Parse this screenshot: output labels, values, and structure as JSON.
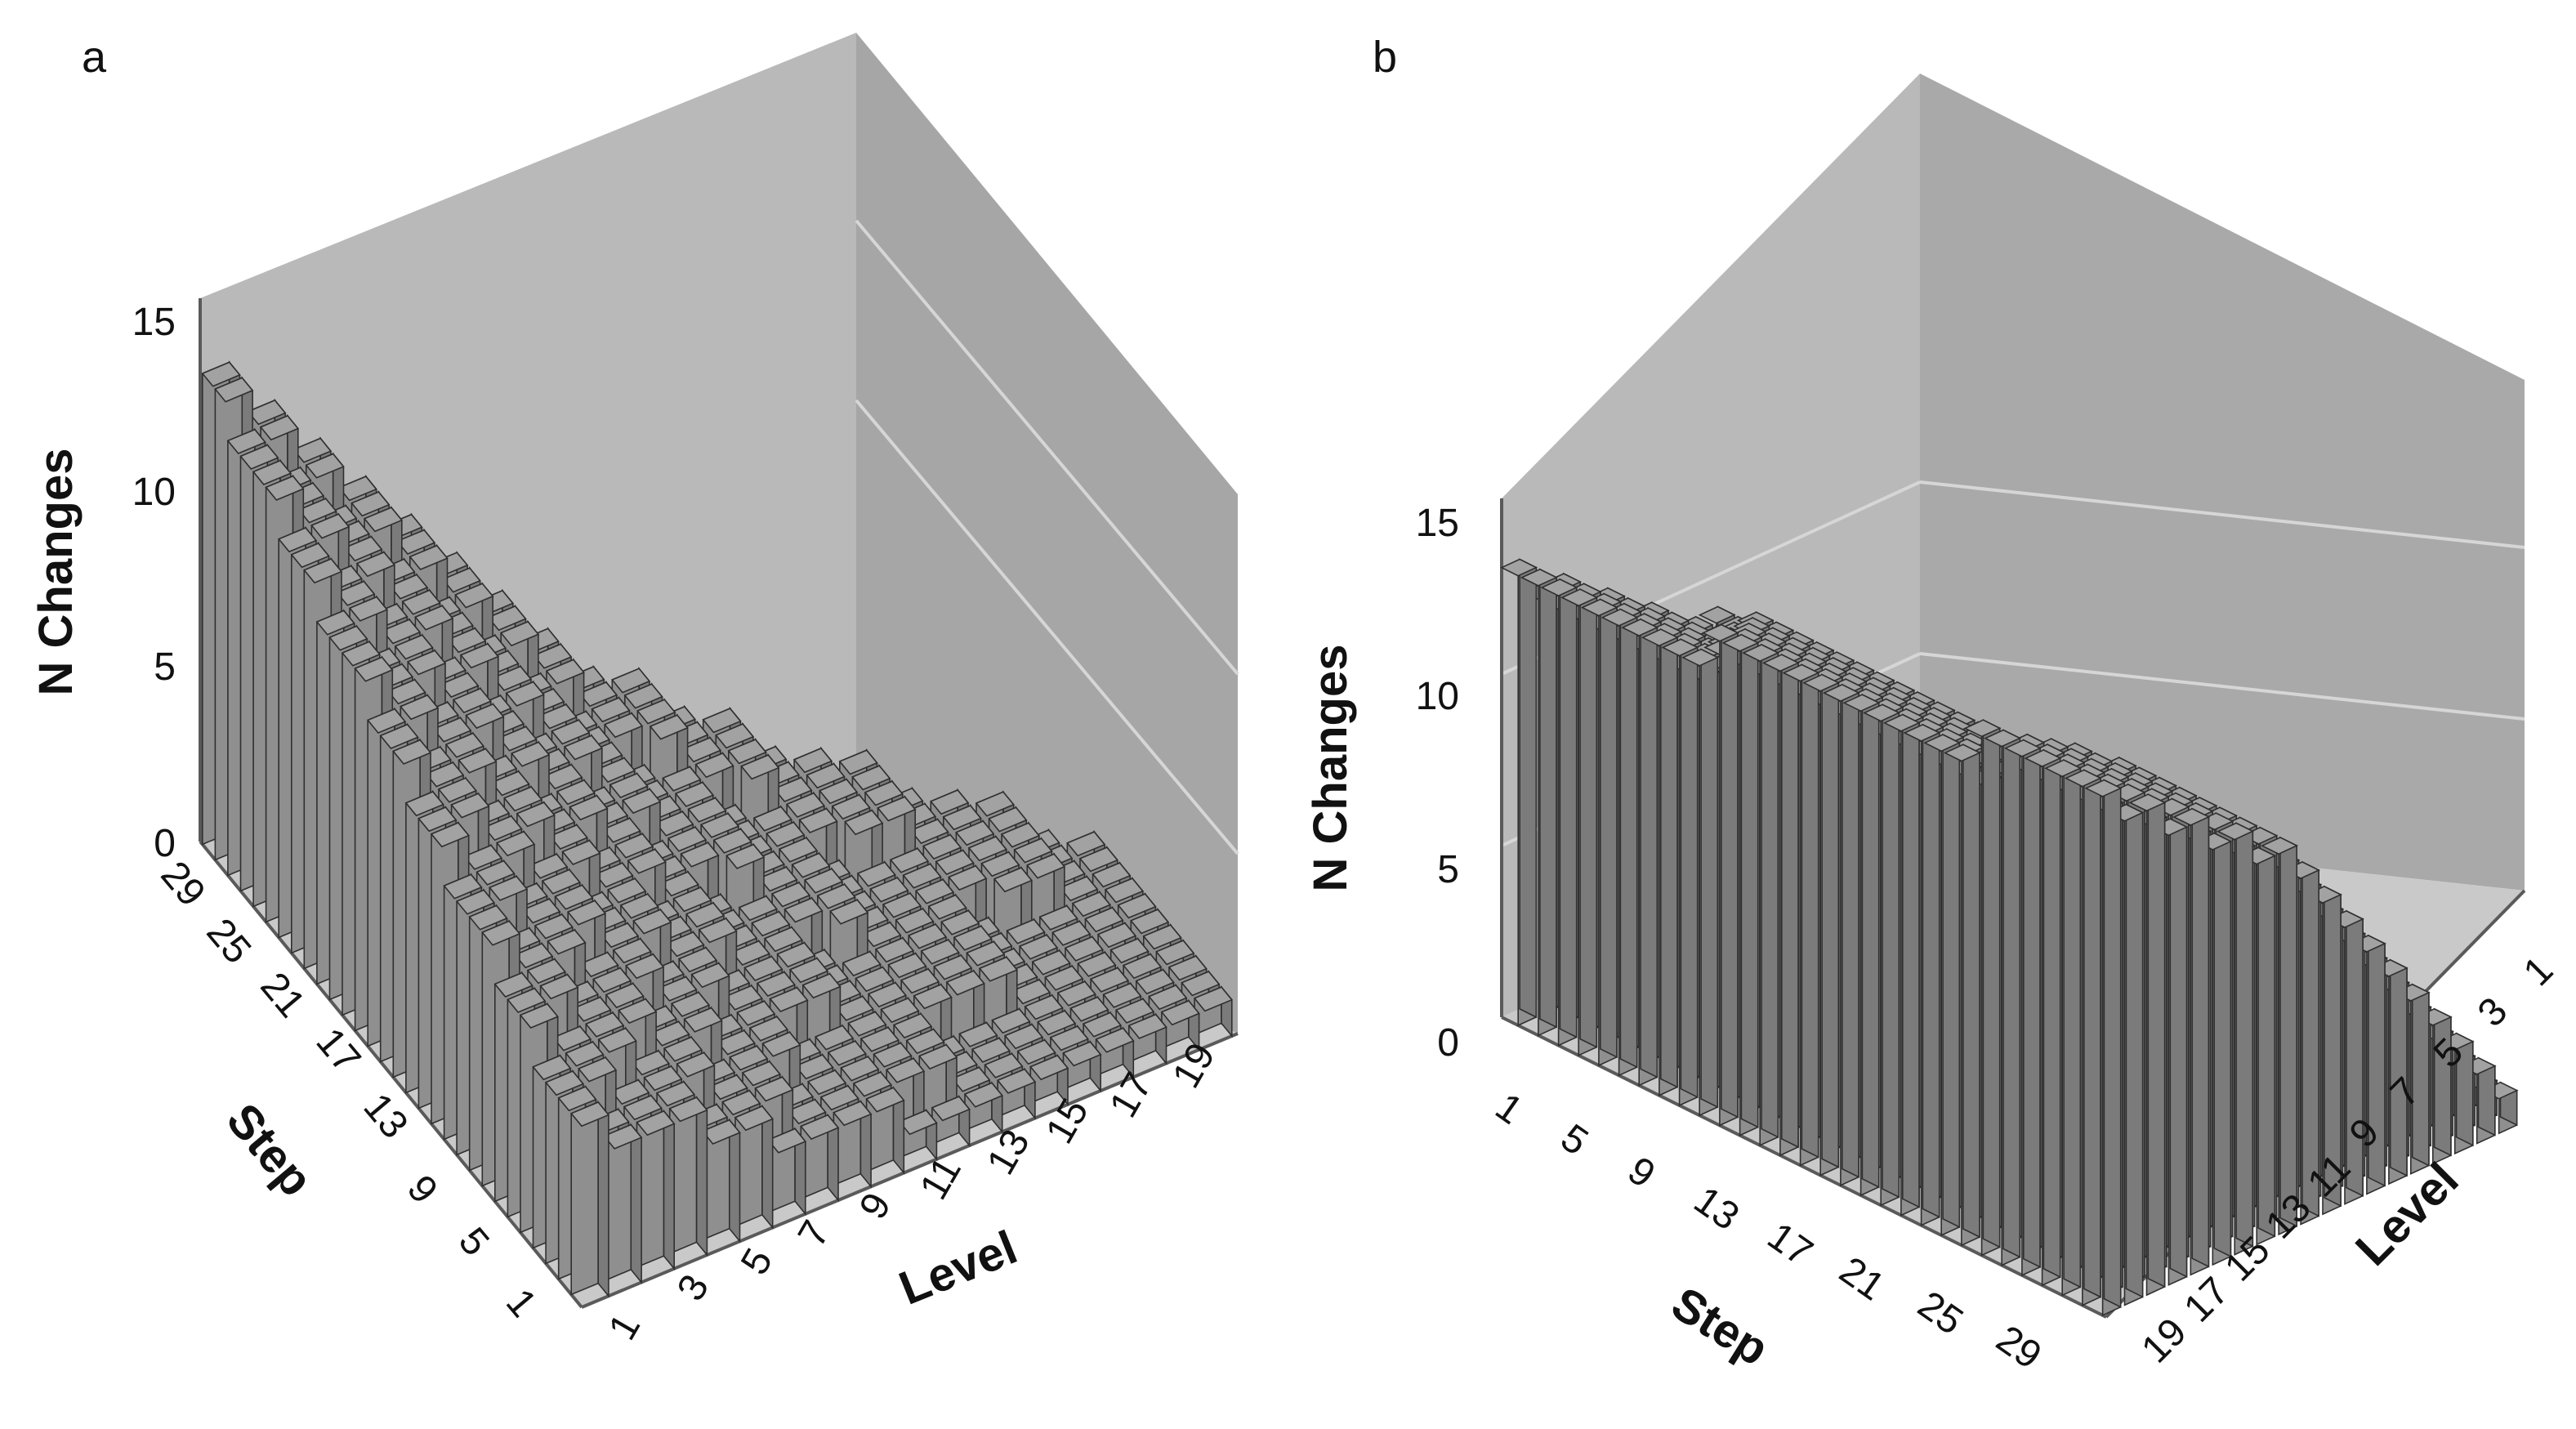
{
  "figure": {
    "panels": [
      "a",
      "b"
    ]
  },
  "colors": {
    "back_wall": "#b9b9b9",
    "side_wall": "#a6a6a6",
    "floor": "#c9c9c9",
    "grid_line": "#d6d6d6",
    "bar_top": "#a2a2a2",
    "bar_left": "#8f8f8f",
    "bar_right": "#7b7b7b",
    "bar_edge": "#2f2f2f"
  },
  "chart_data": [
    {
      "panel": "a",
      "type": "bar3d",
      "zlabel": "N Changes",
      "xlabel": "Level",
      "ylabel": "Step",
      "zlim": [
        0,
        15
      ],
      "z_ticks": [
        "0",
        "5",
        "10",
        "15"
      ],
      "level_ticks": [
        "1",
        "3",
        "5",
        "7",
        "9",
        "11",
        "13",
        "15",
        "17",
        "19"
      ],
      "step_ticks": [
        "29",
        "25",
        "21",
        "17",
        "13",
        "9",
        "5",
        "1"
      ],
      "levels": 20,
      "steps": 30,
      "pattern": "staircase: each level holds its count from step 1 up to step 31 - level, count grows stepwise with step",
      "max_by_level": [
        13,
        12,
        11,
        10,
        9,
        8,
        7,
        6,
        5,
        5,
        4,
        4,
        3,
        3,
        3,
        2,
        2,
        2,
        1,
        1
      ]
    },
    {
      "panel": "b",
      "type": "bar3d",
      "zlabel": "N Changes",
      "xlabel": "Step",
      "ylabel": "Level",
      "zlim": [
        0,
        15
      ],
      "z_ticks": [
        "0",
        "5",
        "10",
        "15"
      ],
      "step_ticks": [
        "1",
        "5",
        "9",
        "13",
        "17",
        "21",
        "25",
        "29"
      ],
      "level_ticks": [
        "1",
        "3",
        "5",
        "7",
        "9",
        "11",
        "13",
        "15",
        "17",
        "19"
      ],
      "levels": 19,
      "steps": 30,
      "pattern": "count ~ level / 1.4 + step / 12, levels 1-19 filled at every step",
      "max_by_level": [
        1,
        2,
        3,
        4,
        5,
        6,
        7,
        8,
        9,
        10,
        11,
        11,
        12,
        12,
        13,
        13,
        14,
        14,
        15
      ]
    }
  ]
}
